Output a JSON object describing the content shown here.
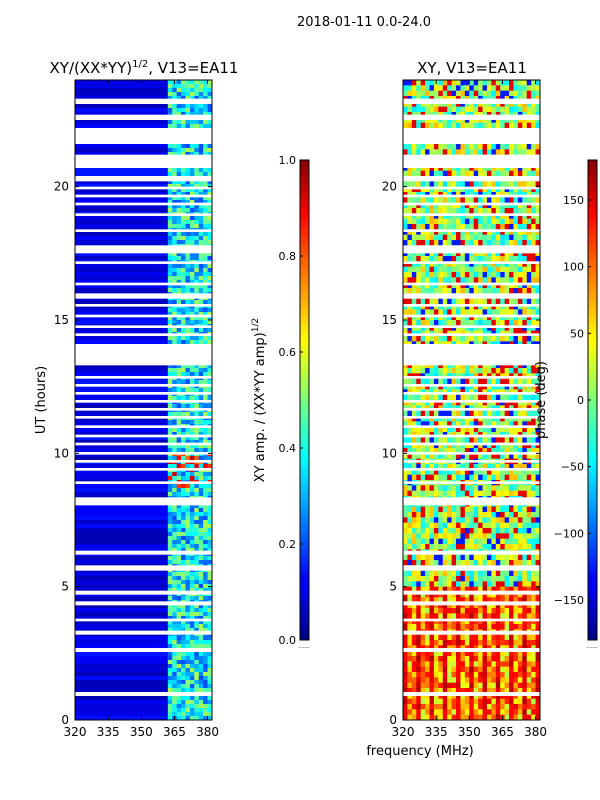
{
  "figure": {
    "suptitle": "2018-01-11 0.0-24.0",
    "xlabel": "frequency (MHz)"
  },
  "chart_data": [
    {
      "type": "heatmap",
      "title_main": "XY/(XX*YY)",
      "title_sup": "1/2",
      "title_rest": ", V13=EA11",
      "xlabel": "",
      "ylabel": "UT (hours)",
      "xlim": [
        320,
        382
      ],
      "ylim": [
        0,
        24
      ],
      "xticks": [
        320,
        335,
        350,
        365,
        380
      ],
      "yticks": [
        0,
        5,
        10,
        15,
        20
      ],
      "colorbar": {
        "label_main": "XY amp. / (XX*YY amp)",
        "label_sup": "1/2",
        "range": [
          0.0,
          1.0
        ],
        "ticks": [
          "0.0",
          "0.2",
          "0.4",
          "0.6",
          "0.8",
          "1.0"
        ],
        "tick_values": [
          0.0,
          0.2,
          0.4,
          0.6,
          0.8,
          1.0
        ],
        "extra_label": "......"
      },
      "gap_hours": [
        0.9,
        1.05,
        2.55,
        2.7,
        3.2,
        3.35,
        3.7,
        3.8,
        4.3,
        4.45,
        4.7,
        4.85,
        5.6,
        5.8,
        6.2,
        6.35,
        8.05,
        8.35,
        8.85,
        8.95,
        9.35,
        9.45,
        9.65,
        9.75,
        9.95,
        10.05,
        10.3,
        10.4,
        10.6,
        10.7,
        10.95,
        11.05,
        11.3,
        11.4,
        11.6,
        11.7,
        11.9,
        12.0,
        12.2,
        12.3,
        12.5,
        12.6,
        12.8,
        12.9,
        13.3,
        14.1,
        14.4,
        14.5,
        14.7,
        14.8,
        15.1,
        15.2,
        15.5,
        15.6,
        15.8,
        16.0,
        16.3,
        16.4,
        17.1,
        17.2,
        17.5,
        17.8,
        18.3,
        18.4,
        18.9,
        19.0,
        19.3,
        19.4,
        19.6,
        19.7,
        19.9,
        20.0,
        20.2,
        20.4,
        20.7,
        21.2,
        21.6,
        22.2,
        22.5,
        22.7,
        23.1,
        23.3
      ]
    },
    {
      "type": "heatmap",
      "title_main": "XY, V13=EA11",
      "xlabel": "",
      "ylabel": "",
      "xlim": [
        320,
        382
      ],
      "ylim": [
        0,
        24
      ],
      "xticks": [
        320,
        335,
        350,
        365,
        380
      ],
      "yticks": [
        0,
        5,
        10,
        15,
        20
      ],
      "colorbar": {
        "label_main": "phase (deg)",
        "range": [
          -180,
          180
        ],
        "ticks": [
          "−150",
          "−100",
          "−50",
          "0",
          "50",
          "100",
          "150"
        ],
        "tick_values": [
          -150,
          -100,
          -50,
          0,
          50,
          100,
          150
        ],
        "extra_label": "......"
      },
      "gap_hours": [
        0.9,
        1.05,
        2.55,
        2.7,
        3.2,
        3.35,
        3.7,
        3.8,
        4.3,
        4.45,
        4.7,
        4.85,
        5.6,
        5.8,
        6.2,
        6.35,
        8.05,
        8.35,
        8.85,
        8.95,
        9.35,
        9.45,
        9.65,
        9.75,
        9.95,
        10.05,
        10.3,
        10.4,
        10.6,
        10.7,
        10.95,
        11.05,
        11.3,
        11.4,
        11.6,
        11.7,
        11.9,
        12.0,
        12.2,
        12.3,
        12.5,
        12.6,
        12.8,
        12.9,
        13.3,
        14.1,
        14.4,
        14.5,
        14.7,
        14.8,
        15.1,
        15.2,
        15.5,
        15.6,
        15.8,
        16.0,
        16.3,
        16.4,
        17.1,
        17.2,
        17.5,
        17.8,
        18.3,
        18.4,
        18.9,
        19.0,
        19.3,
        19.4,
        19.6,
        19.7,
        19.9,
        20.0,
        20.2,
        20.4,
        20.7,
        21.2,
        21.6,
        22.2,
        22.5,
        22.7,
        23.1,
        23.3
      ]
    }
  ]
}
